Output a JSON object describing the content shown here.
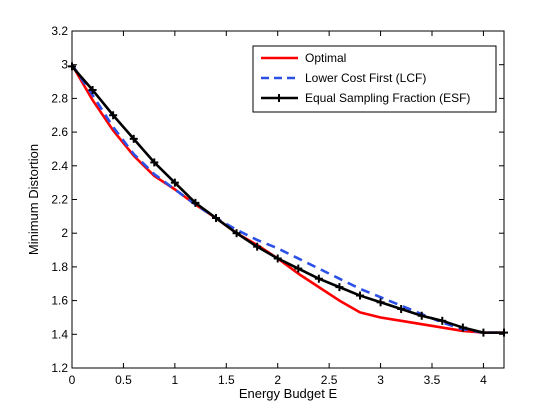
{
  "chart_data": {
    "type": "line",
    "title": "",
    "xlabel": "Energy Budget E",
    "ylabel": "Minimum Distortion",
    "xlim": [
      0,
      4.2
    ],
    "ylim": [
      1.2,
      3.2
    ],
    "xticks": [
      0,
      0.5,
      1,
      1.5,
      2,
      2.5,
      3,
      3.5,
      4
    ],
    "xtick_labels": [
      "0",
      "0.5",
      "1",
      "1.5",
      "2",
      "2.5",
      "3",
      "3.5",
      "4"
    ],
    "yticks": [
      1.2,
      1.4,
      1.6,
      1.8,
      2.0,
      2.2,
      2.4,
      2.6,
      2.8,
      3.0,
      3.2
    ],
    "ytick_labels": [
      "1.2",
      "1.4",
      "1.6",
      "1.8",
      "2",
      "2.2",
      "2.4",
      "2.6",
      "2.8",
      "3",
      "3.2"
    ],
    "grid": false,
    "legend_position": "top-right",
    "series": [
      {
        "name": "Optimal",
        "color": "#ff0000",
        "style": "solid",
        "marker": "none",
        "x": [
          0,
          0.2,
          0.4,
          0.6,
          0.8,
          1.0,
          1.2,
          1.4,
          1.6,
          1.8,
          2.0,
          2.2,
          2.4,
          2.6,
          2.8,
          3.0,
          3.2,
          3.4,
          3.6,
          3.8,
          4.0,
          4.2
        ],
        "y": [
          3.0,
          2.79,
          2.61,
          2.46,
          2.34,
          2.26,
          2.17,
          2.09,
          2.0,
          1.93,
          1.85,
          1.76,
          1.68,
          1.6,
          1.53,
          1.5,
          1.48,
          1.46,
          1.44,
          1.42,
          1.41,
          1.41
        ]
      },
      {
        "name": "Lower Cost First (LCF)",
        "color": "#2b50e8",
        "style": "dashed",
        "marker": "none",
        "x": [
          0,
          0.2,
          0.4,
          0.6,
          0.8,
          1.0,
          1.2,
          1.4,
          1.6,
          1.8,
          2.0,
          2.2,
          2.4,
          2.6,
          2.8,
          3.0,
          3.2,
          3.4,
          3.6,
          3.8,
          4.0,
          4.2
        ],
        "y": [
          3.0,
          2.82,
          2.63,
          2.47,
          2.35,
          2.26,
          2.17,
          2.09,
          2.02,
          1.96,
          1.91,
          1.85,
          1.79,
          1.73,
          1.67,
          1.62,
          1.57,
          1.52,
          1.47,
          1.43,
          1.41,
          1.41
        ]
      },
      {
        "name": "Equal Sampling Fraction (ESF)",
        "color": "#000000",
        "style": "solid",
        "marker": "plus",
        "x": [
          0,
          0.2,
          0.4,
          0.6,
          0.8,
          1.0,
          1.2,
          1.4,
          1.6,
          1.8,
          2.0,
          2.2,
          2.4,
          2.6,
          2.8,
          3.0,
          3.2,
          3.4,
          3.6,
          3.8,
          4.0,
          4.2
        ],
        "y": [
          2.99,
          2.85,
          2.7,
          2.56,
          2.42,
          2.3,
          2.18,
          2.09,
          2.0,
          1.92,
          1.85,
          1.79,
          1.73,
          1.68,
          1.63,
          1.59,
          1.55,
          1.51,
          1.48,
          1.44,
          1.41,
          1.41
        ]
      }
    ]
  }
}
